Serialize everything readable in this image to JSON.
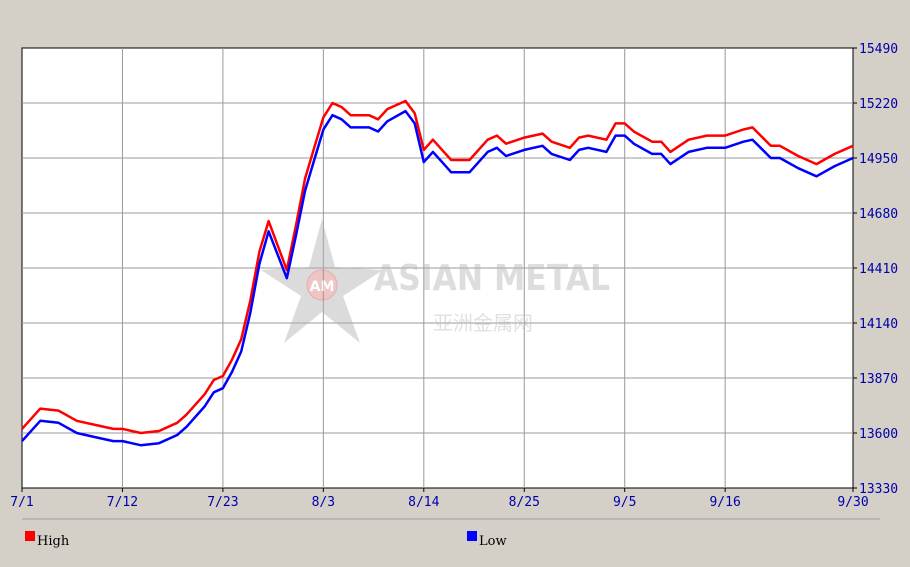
{
  "chart_data": {
    "type": "line",
    "x": [
      "7/1",
      "7/3",
      "7/5",
      "7/7",
      "7/9",
      "7/11",
      "7/12",
      "7/14",
      "7/16",
      "7/18",
      "7/19",
      "7/21",
      "7/22",
      "7/23",
      "7/24",
      "7/25",
      "7/26",
      "7/27",
      "7/28",
      "7/30",
      "7/31",
      "8/1",
      "8/2",
      "8/3",
      "8/4",
      "8/5",
      "8/6",
      "8/8",
      "8/9",
      "8/10",
      "8/12",
      "8/13",
      "8/14",
      "8/15",
      "8/16",
      "8/17",
      "8/19",
      "8/21",
      "8/22",
      "8/23",
      "8/25",
      "8/27",
      "8/28",
      "8/30",
      "8/31",
      "9/1",
      "9/3",
      "9/4",
      "9/5",
      "9/6",
      "9/8",
      "9/9",
      "9/10",
      "9/12",
      "9/14",
      "9/16",
      "9/18",
      "9/19",
      "9/21",
      "9/22",
      "9/24",
      "9/26",
      "9/28",
      "9/30"
    ],
    "series": [
      {
        "name": "High",
        "values": [
          13620,
          13720,
          13710,
          13660,
          13640,
          13620,
          13620,
          13600,
          13610,
          13650,
          13690,
          13790,
          13860,
          13880,
          13960,
          14060,
          14250,
          14490,
          14640,
          14400,
          14620,
          14850,
          15000,
          15150,
          15220,
          15200,
          15160,
          15160,
          15140,
          15190,
          15230,
          15170,
          14990,
          15040,
          14990,
          14940,
          14940,
          15040,
          15060,
          15020,
          15050,
          15070,
          15030,
          15000,
          15050,
          15060,
          15040,
          15120,
          15120,
          15080,
          15030,
          15030,
          14980,
          15040,
          15060,
          15060,
          15090,
          15100,
          15010,
          15010,
          14960,
          14920,
          14970,
          15010
        ]
      },
      {
        "name": "Low",
        "values": [
          13560,
          13660,
          13650,
          13600,
          13580,
          13560,
          13560,
          13540,
          13550,
          13590,
          13630,
          13730,
          13800,
          13820,
          13900,
          14000,
          14190,
          14430,
          14590,
          14360,
          14570,
          14790,
          14940,
          15090,
          15160,
          15140,
          15100,
          15100,
          15080,
          15130,
          15180,
          15120,
          14930,
          14980,
          14930,
          14880,
          14880,
          14980,
          15000,
          14960,
          14990,
          15010,
          14970,
          14940,
          14990,
          15000,
          14980,
          15060,
          15060,
          15020,
          14970,
          14970,
          14920,
          14980,
          15000,
          15000,
          15030,
          15040,
          14950,
          14950,
          14900,
          14860,
          14910,
          14950
        ]
      }
    ],
    "x_ticks": [
      "7/1",
      "7/12",
      "7/23",
      "8/3",
      "8/14",
      "8/25",
      "9/5",
      "9/16",
      "9/30"
    ],
    "y_ticks": [
      "13330",
      "13600",
      "13870",
      "14140",
      "14410",
      "14680",
      "14950",
      "15220",
      "15490"
    ],
    "ylim": [
      13330,
      15490
    ],
    "grid": true,
    "legend_position": "bottom",
    "colors": {
      "High": "#ff0000",
      "Low": "#0000ff"
    },
    "watermark": {
      "brand": "ASIAN METAL",
      "logo_text": "AM",
      "chinese": "亚洲金属网"
    },
    "title": "",
    "xlabel": "",
    "ylabel": ""
  }
}
